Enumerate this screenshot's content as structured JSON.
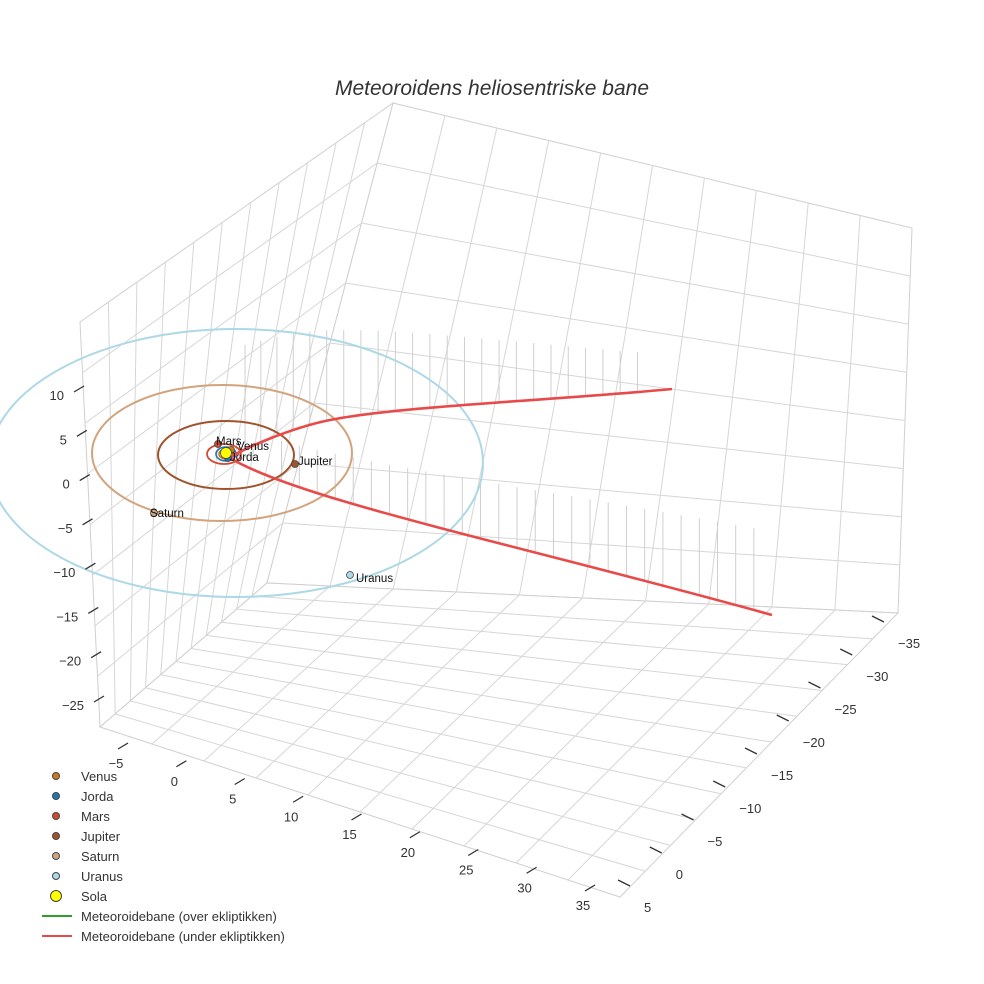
{
  "chart_data": {
    "type": "scatter3d",
    "title": "Meteoroidens heliosentriske bane",
    "axes": {
      "x": {
        "ticks": [
          -5,
          0,
          5,
          10,
          15,
          20,
          25,
          30,
          35
        ]
      },
      "y": {
        "ticks": [
          -35,
          -30,
          -25,
          -20,
          -15,
          -10,
          -5,
          0,
          5
        ]
      },
      "z": {
        "ticks": [
          10,
          5,
          0,
          -5,
          -10,
          -15,
          -20,
          -25
        ]
      }
    },
    "planets": [
      {
        "name": "Venus",
        "orbit_radius_au": 0.72,
        "color": "#c8781e"
      },
      {
        "name": "Jorda",
        "orbit_radius_au": 1.0,
        "color": "#1f77b4"
      },
      {
        "name": "Mars",
        "orbit_radius_au": 1.52,
        "color": "#d1492f"
      },
      {
        "name": "Jupiter",
        "orbit_radius_au": 5.2,
        "color": "#a0522d"
      },
      {
        "name": "Saturn",
        "orbit_radius_au": 9.5,
        "color": "#d2a47e"
      },
      {
        "name": "Uranus",
        "orbit_radius_au": 19.2,
        "color": "#add8e6"
      }
    ],
    "sun": {
      "name": "Sola",
      "color": "#ffff00"
    },
    "trajectory": {
      "color_above": "#2ca02c",
      "color_below": "#e84a4a",
      "shape": "hyperbolic path passing near the Sun, entirely below the ecliptic"
    },
    "legend": [
      {
        "label": "Venus",
        "kind": "marker",
        "color": "#c8781e"
      },
      {
        "label": "Jorda",
        "kind": "marker",
        "color": "#1f77b4"
      },
      {
        "label": "Mars",
        "kind": "marker",
        "color": "#d1492f"
      },
      {
        "label": "Jupiter",
        "kind": "marker",
        "color": "#a0522d"
      },
      {
        "label": "Saturn",
        "kind": "marker",
        "color": "#d2a47e"
      },
      {
        "label": "Uranus",
        "kind": "marker",
        "color": "#add8e6"
      },
      {
        "label": "Sola",
        "kind": "sun",
        "color": "#ffff00"
      },
      {
        "label": "Meteoroidebane (over ekliptikken)",
        "kind": "line",
        "color": "#2ca02c"
      },
      {
        "label": "Meteoroidebane (under ekliptikken)",
        "kind": "line",
        "color": "#e84a4a"
      }
    ]
  }
}
